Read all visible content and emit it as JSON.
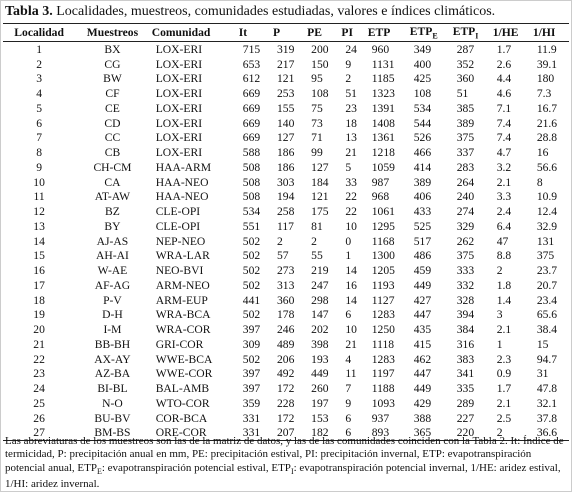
{
  "title": {
    "label": "Tabla 3.",
    "text": " Localidades, muestreos, comunidades estudiadas, valores e índices climáticos."
  },
  "table": {
    "header": [
      {
        "text": "Localidad"
      },
      {
        "text": "Muestreos"
      },
      {
        "text": "Comunidad"
      },
      {
        "text": "It"
      },
      {
        "text": "P"
      },
      {
        "text": "PE"
      },
      {
        "text": "PI"
      },
      {
        "text": "ETP"
      },
      {
        "text": "ETP",
        "sub": "E"
      },
      {
        "text": "ETP",
        "sub": "I"
      },
      {
        "text": "1/HE"
      },
      {
        "text": "1/HI"
      }
    ],
    "rows": [
      [
        "1",
        "BX",
        "LOX-ERI",
        "715",
        "319",
        "200",
        "24",
        "960",
        "349",
        "287",
        "1.7",
        "11.9"
      ],
      [
        "2",
        "CG",
        "LOX-ERI",
        "653",
        "217",
        "150",
        "9",
        "1131",
        "400",
        "352",
        "2.6",
        "39.1"
      ],
      [
        "3",
        "BW",
        "LOX-ERI",
        "612",
        "121",
        "95",
        "2",
        "1185",
        "425",
        "360",
        "4.4",
        "180"
      ],
      [
        "4",
        "CF",
        "LOX-ERI",
        "669",
        "253",
        "108",
        "51",
        "1323",
        "108",
        "51",
        "4.6",
        "7.3"
      ],
      [
        "5",
        "CE",
        "LOX-ERI",
        "669",
        "155",
        "75",
        "23",
        "1391",
        "534",
        "385",
        "7.1",
        "16.7"
      ],
      [
        "6",
        "CD",
        "LOX-ERI",
        "669",
        "140",
        "73",
        "18",
        "1408",
        "544",
        "389",
        "7.4",
        "21.6"
      ],
      [
        "7",
        "CC",
        "LOX-ERI",
        "669",
        "127",
        "71",
        "13",
        "1361",
        "526",
        "375",
        "7.4",
        "28.8"
      ],
      [
        "8",
        "CB",
        "LOX-ERI",
        "588",
        "186",
        "99",
        "21",
        "1218",
        "466",
        "337",
        "4.7",
        "16"
      ],
      [
        "9",
        "CH-CM",
        "HAA-ARM",
        "508",
        "186",
        "127",
        "5",
        "1059",
        "414",
        "283",
        "3.2",
        "56.6"
      ],
      [
        "10",
        "CA",
        "HAA-NEO",
        "508",
        "303",
        "184",
        "33",
        "987",
        "389",
        "264",
        "2.1",
        "8"
      ],
      [
        "11",
        "AT-AW",
        "HAA-NEO",
        "508",
        "194",
        "121",
        "22",
        "968",
        "406",
        "240",
        "3.3",
        "10.9"
      ],
      [
        "12",
        "BZ",
        "CLE-OPI",
        "534",
        "258",
        "175",
        "22",
        "1061",
        "433",
        "274",
        "2.4",
        "12.4"
      ],
      [
        "13",
        "BY",
        "CLE-OPI",
        "551",
        "117",
        "81",
        "10",
        "1295",
        "525",
        "329",
        "6.4",
        "32.9"
      ],
      [
        "14",
        "AJ-AS",
        "NEP-NEO",
        "502",
        "2",
        "2",
        "0",
        "1168",
        "517",
        "262",
        "47",
        "131"
      ],
      [
        "15",
        "AH-AI",
        "WRA-LAR",
        "502",
        "57",
        "55",
        "1",
        "1300",
        "486",
        "375",
        "8.8",
        "375"
      ],
      [
        "16",
        "W-AE",
        "NEO-BVI",
        "502",
        "273",
        "219",
        "14",
        "1205",
        "459",
        "333",
        "2",
        "23.7"
      ],
      [
        "17",
        "AF-AG",
        "ARM-NEO",
        "502",
        "313",
        "247",
        "16",
        "1193",
        "449",
        "332",
        "1.8",
        "20.7"
      ],
      [
        "18",
        "P-V",
        "ARM-EUP",
        "441",
        "360",
        "298",
        "14",
        "1127",
        "427",
        "328",
        "1.4",
        "23.4"
      ],
      [
        "19",
        "D-H",
        "WRA-BCA",
        "502",
        "178",
        "147",
        "6",
        "1283",
        "447",
        "394",
        "3",
        "65.6"
      ],
      [
        "20",
        "I-M",
        "WRA-COR",
        "397",
        "246",
        "202",
        "10",
        "1250",
        "435",
        "384",
        "2.1",
        "38.4"
      ],
      [
        "21",
        "BB-BH",
        "GRI-COR",
        "309",
        "489",
        "398",
        "21",
        "1118",
        "415",
        "316",
        "1",
        "15"
      ],
      [
        "22",
        "AX-AY",
        "WWE-BCA",
        "502",
        "206",
        "193",
        "4",
        "1283",
        "462",
        "383",
        "2.3",
        "94.7"
      ],
      [
        "23",
        "AZ-BA",
        "WWE-COR",
        "397",
        "492",
        "449",
        "11",
        "1197",
        "447",
        "341",
        "0.9",
        "31"
      ],
      [
        "24",
        "BI-BL",
        "BAL-AMB",
        "397",
        "172",
        "260",
        "7",
        "1188",
        "449",
        "335",
        "1.7",
        "47.8"
      ],
      [
        "25",
        "N-O",
        "WTO-COR",
        "359",
        "228",
        "197",
        "9",
        "1093",
        "429",
        "289",
        "2.1",
        "32.1"
      ],
      [
        "26",
        "BU-BV",
        "COR-BCA",
        "331",
        "172",
        "153",
        "6",
        "937",
        "388",
        "227",
        "2.5",
        "37.8"
      ],
      [
        "27",
        "BM-BS",
        "ORE-COR",
        "331",
        "207",
        "182",
        "6",
        "893",
        "365",
        "220",
        "2",
        "36.6"
      ]
    ]
  },
  "notes": [
    {
      "text": "Las abreviaturas de los muestreos son las de la matriz de datos, y las de las comunidades coinciden con la Tabla 2. It: Índice de termicidad, P: precipitación anual en mm, PE: precipitación estival, PI: precipitación invernal, ETP: evapotranspiración potencial anual, ETP"
    },
    {
      "sub": "E"
    },
    {
      "text": ": evapotranspiración potencial estival, ETP"
    },
    {
      "sub": "I"
    },
    {
      "text": ": evapotranspiración potencial invernal, 1/HE: aridez estival, 1/HI: aridez invernal."
    }
  ]
}
